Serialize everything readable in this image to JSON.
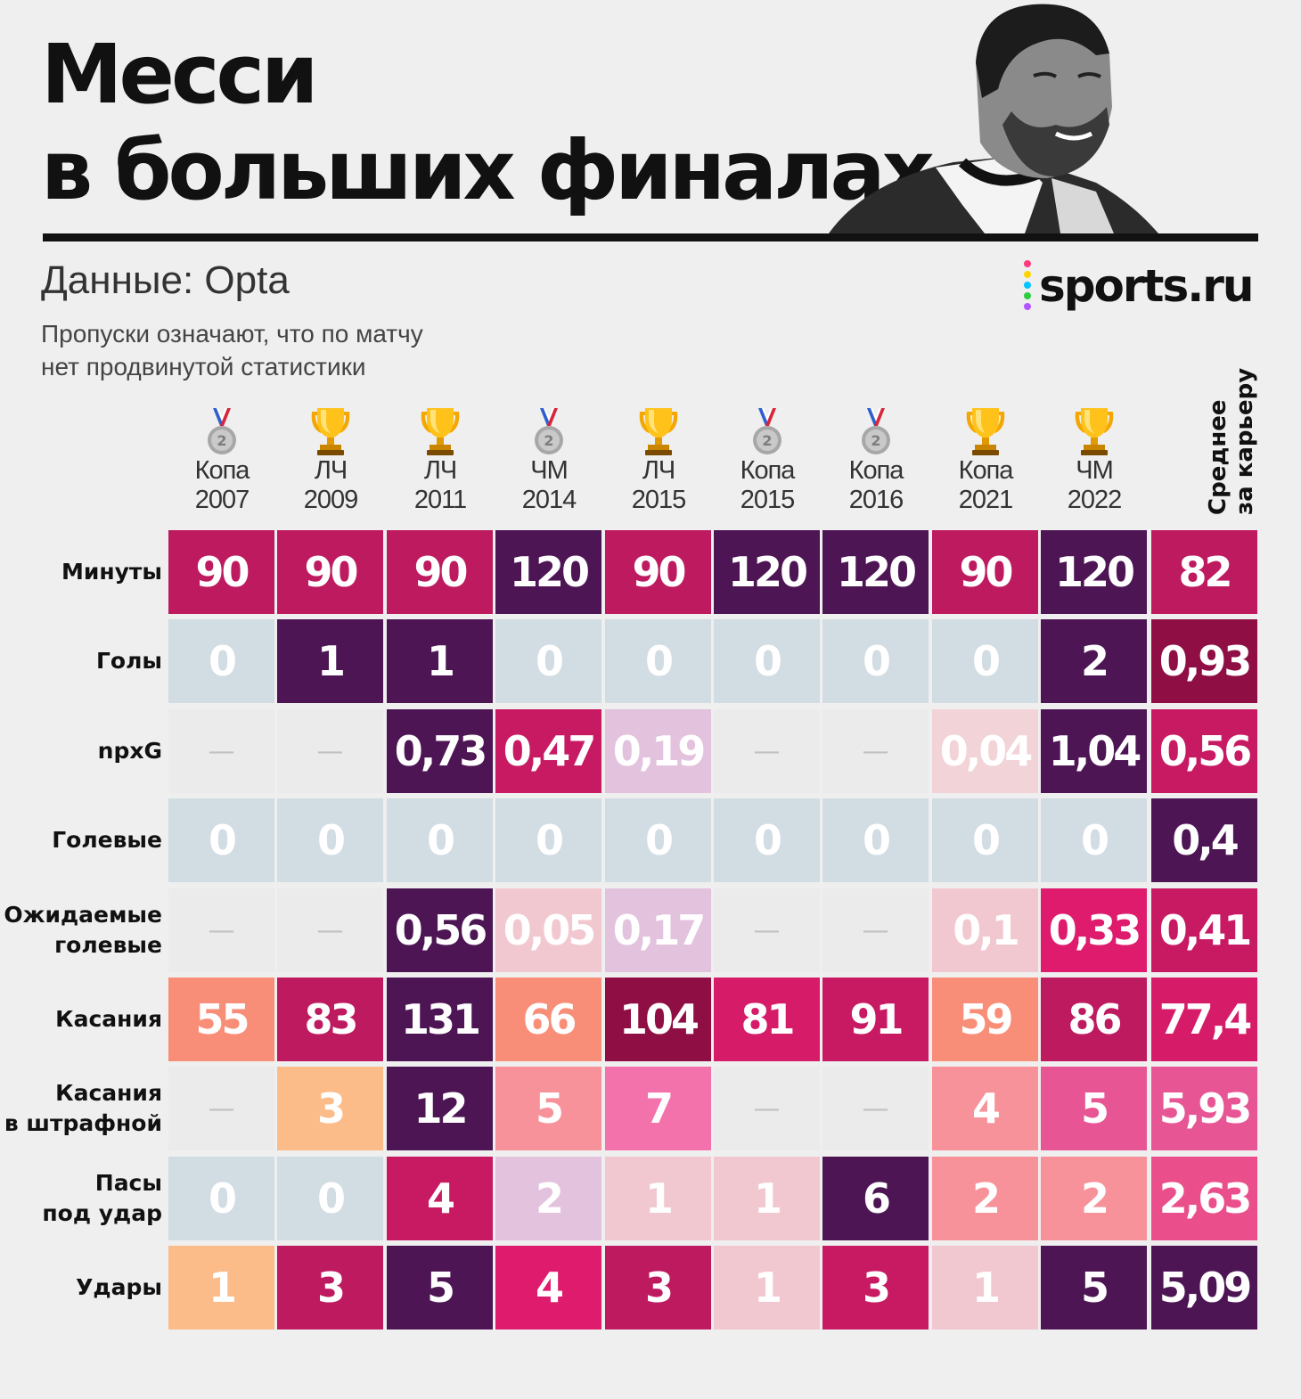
{
  "header": {
    "title_line1": "Месси",
    "title_line2": "в больших финалах",
    "source": "Данные: Opta",
    "note_line1": "Пропуски означают, что по матчу",
    "note_line2": "нет продвинутой статистики",
    "logo": "sports.ru"
  },
  "chart_data": {
    "type": "table",
    "columns": [
      {
        "name": "Копа",
        "year": "2007",
        "result": "silver-medal",
        "result_label": "2"
      },
      {
        "name": "ЛЧ",
        "year": "2009",
        "result": "trophy"
      },
      {
        "name": "ЛЧ",
        "year": "2011",
        "result": "trophy"
      },
      {
        "name": "ЧМ",
        "year": "2014",
        "result": "silver-medal",
        "result_label": "2"
      },
      {
        "name": "ЛЧ",
        "year": "2015",
        "result": "trophy"
      },
      {
        "name": "Копа",
        "year": "2015",
        "result": "silver-medal",
        "result_label": "2"
      },
      {
        "name": "Копа",
        "year": "2016",
        "result": "silver-medal",
        "result_label": "2"
      },
      {
        "name": "Копа",
        "year": "2021",
        "result": "trophy"
      },
      {
        "name": "ЧМ",
        "year": "2022",
        "result": "trophy"
      }
    ],
    "average_column_label": [
      "Среднее",
      "за карьеру"
    ],
    "rows": [
      {
        "label": [
          "Минуты"
        ],
        "values": [
          "90",
          "90",
          "90",
          "120",
          "90",
          "120",
          "120",
          "90",
          "120"
        ],
        "average": "82",
        "colors": [
          "#be1a5f",
          "#be1a5f",
          "#be1a5f",
          "#4d1554",
          "#be1a5f",
          "#4d1554",
          "#4d1554",
          "#be1a5f",
          "#4d1554"
        ],
        "average_color": "#be1a5f"
      },
      {
        "label": [
          "Голы"
        ],
        "values": [
          "0",
          "1",
          "1",
          "0",
          "0",
          "0",
          "0",
          "0",
          "2"
        ],
        "average": "0,93",
        "colors": [
          "#d1dce3",
          "#4d1554",
          "#4d1554",
          "#d1dce3",
          "#d1dce3",
          "#d1dce3",
          "#d1dce3",
          "#d1dce3",
          "#4d1554"
        ],
        "average_color": "#8f0f45"
      },
      {
        "label": [
          "npxG"
        ],
        "values": [
          "—",
          "—",
          "0,73",
          "0,47",
          "0,19",
          "—",
          "—",
          "0,04",
          "1,04"
        ],
        "average": "0,56",
        "colors": [
          "#ebebeb",
          "#ebebeb",
          "#4d1554",
          "#c81a63",
          "#e3c2dd",
          "#ebebeb",
          "#ebebeb",
          "#f2d3d7",
          "#4d1554"
        ],
        "average_color": "#c81a63"
      },
      {
        "label": [
          "Голевые"
        ],
        "values": [
          "0",
          "0",
          "0",
          "0",
          "0",
          "0",
          "0",
          "0",
          "0"
        ],
        "average": "0,4",
        "colors": [
          "#d1dce3",
          "#d1dce3",
          "#d1dce3",
          "#d1dce3",
          "#d1dce3",
          "#d1dce3",
          "#d1dce3",
          "#d1dce3",
          "#d1dce3"
        ],
        "average_color": "#4d1554"
      },
      {
        "label": [
          "Ожидаемые",
          "голевые"
        ],
        "values": [
          "—",
          "—",
          "0,56",
          "0,05",
          "0,17",
          "—",
          "—",
          "0,1",
          "0,33"
        ],
        "average": "0,41",
        "colors": [
          "#ebebeb",
          "#ebebeb",
          "#4d1554",
          "#f2c8d0",
          "#e3c2dd",
          "#ebebeb",
          "#ebebeb",
          "#f2c8d0",
          "#de1b6c"
        ],
        "average_color": "#c81a63"
      },
      {
        "label": [
          "Касания"
        ],
        "values": [
          "55",
          "83",
          "131",
          "66",
          "104",
          "81",
          "91",
          "59",
          "86"
        ],
        "average": "77,4",
        "colors": [
          "#f98e78",
          "#be1a5f",
          "#4d1554",
          "#f98e78",
          "#8f0f45",
          "#d61c68",
          "#c81a63",
          "#f98e78",
          "#be1a5f"
        ],
        "average_color": "#d61c68"
      },
      {
        "label": [
          "Касания",
          "в штрафной"
        ],
        "values": [
          "—",
          "3",
          "12",
          "5",
          "7",
          "—",
          "—",
          "4",
          "5"
        ],
        "average": "5,93",
        "colors": [
          "#ebebeb",
          "#fcbc8a",
          "#4d1554",
          "#f7929a",
          "#f472ac",
          "#ebebeb",
          "#ebebeb",
          "#f7929a",
          "#e75594"
        ],
        "average_color": "#e75594"
      },
      {
        "label": [
          "Пасы",
          "под удар"
        ],
        "values": [
          "0",
          "0",
          "4",
          "2",
          "1",
          "1",
          "6",
          "2",
          "2"
        ],
        "average": "2,63",
        "colors": [
          "#d1dce3",
          "#d1dce3",
          "#c81a63",
          "#e3c2dd",
          "#f2c8d0",
          "#f2c8d0",
          "#4d1554",
          "#f7929a",
          "#f7929a"
        ],
        "average_color": "#ea4f8c"
      },
      {
        "label": [
          "Удары"
        ],
        "values": [
          "1",
          "3",
          "5",
          "4",
          "3",
          "1",
          "3",
          "1",
          "5"
        ],
        "average": "5,09",
        "colors": [
          "#fcbc8a",
          "#be1a5f",
          "#4d1554",
          "#de1b6c",
          "#be1a5f",
          "#f2c8d0",
          "#c81a63",
          "#f2c8d0",
          "#4d1554"
        ],
        "average_color": "#4d1554"
      }
    ]
  }
}
